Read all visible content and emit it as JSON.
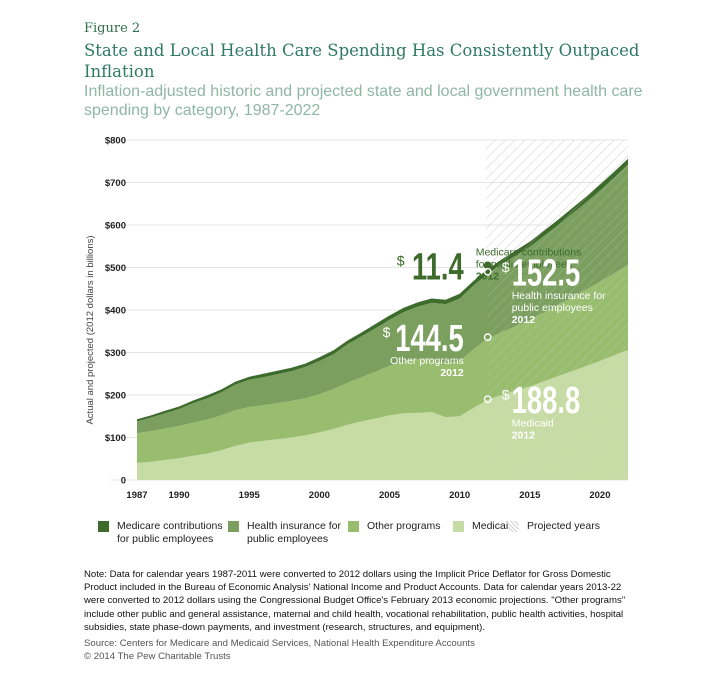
{
  "figure_label": "Figure 2",
  "title": "State and Local Health Care Spending Has Consistently Outpaced Inflation",
  "subtitle": "Inflation-adjusted historic and projected state and local government health care spending by category, 1987-2022",
  "colors": {
    "medicare": "#3d6b2c",
    "health_insurance": "#7a9f5e",
    "other_programs": "#98bd6e",
    "medicaid": "#c7dca4",
    "callout_dark": "#3d6b2c",
    "callout_light": "#ffffff",
    "hatch": "#cfcfcf"
  },
  "chart_data": {
    "type": "area",
    "stacked": true,
    "ylabel": "Actual and projected (2012 dollars in billions)",
    "ylim": [
      0,
      800
    ],
    "yticks": [
      {
        "value": 0,
        "label": "0"
      },
      {
        "value": 100,
        "label": "$100"
      },
      {
        "value": 200,
        "label": "$200"
      },
      {
        "value": 300,
        "label": "$300"
      },
      {
        "value": 400,
        "label": "$400"
      },
      {
        "value": 500,
        "label": "$500"
      },
      {
        "value": 600,
        "label": "$600"
      },
      {
        "value": 700,
        "label": "$700"
      },
      {
        "value": 800,
        "label": "$800"
      }
    ],
    "xticks": [
      {
        "value": 1987,
        "label": "1987"
      },
      {
        "value": 1990,
        "label": "1990"
      },
      {
        "value": 1995,
        "label": "1995"
      },
      {
        "value": 2000,
        "label": "2000"
      },
      {
        "value": 2005,
        "label": "2005"
      },
      {
        "value": 2010,
        "label": "2010"
      },
      {
        "value": 2015,
        "label": "2015"
      },
      {
        "value": 2020,
        "label": "2020"
      }
    ],
    "xlim": [
      1987,
      2022
    ],
    "projected_range": [
      2012,
      2022
    ],
    "x": [
      1987,
      1988,
      1989,
      1990,
      1991,
      1992,
      1993,
      1994,
      1995,
      1996,
      1997,
      1998,
      1999,
      2000,
      2001,
      2002,
      2003,
      2004,
      2005,
      2006,
      2007,
      2008,
      2009,
      2010,
      2011,
      2012,
      2013,
      2014,
      2015,
      2016,
      2017,
      2018,
      2019,
      2020,
      2021,
      2022
    ],
    "series": [
      {
        "name": "Medicaid",
        "key": "medicaid",
        "values": [
          40,
          43,
          47,
          51,
          57,
          62,
          70,
          80,
          88,
          92,
          96,
          100,
          105,
          112,
          120,
          130,
          138,
          145,
          152,
          157,
          158,
          160,
          148,
          150,
          170,
          189,
          200,
          210,
          220,
          232,
          244,
          256,
          268,
          280,
          293,
          306
        ]
      },
      {
        "name": "Other programs",
        "key": "other_programs",
        "values": [
          70,
          72,
          74,
          76,
          78,
          80,
          82,
          84,
          84,
          84,
          85,
          86,
          87,
          90,
          94,
          99,
          104,
          110,
          117,
          123,
          126,
          126,
          126,
          130,
          138,
          144,
          148,
          152,
          157,
          162,
          168,
          174,
          180,
          186,
          193,
          200
        ]
      },
      {
        "name": "Health insurance for public employees",
        "key": "health_insurance",
        "values": [
          28,
          32,
          36,
          40,
          46,
          50,
          54,
          60,
          64,
          66,
          68,
          70,
          74,
          78,
          82,
          90,
          96,
          102,
          108,
          115,
          124,
          131,
          140,
          147,
          150,
          152,
          160,
          166,
          172,
          180,
          187,
          196,
          205,
          215,
          225,
          236
        ]
      },
      {
        "name": "Medicare contributions for public employees",
        "key": "medicare",
        "values": [
          5,
          5,
          6,
          6,
          6,
          7,
          7,
          7,
          7,
          8,
          8,
          8,
          8,
          9,
          9,
          9,
          9,
          10,
          10,
          10,
          10,
          10,
          10,
          11,
          11,
          11,
          11,
          12,
          12,
          12,
          13,
          13,
          13,
          14,
          14,
          14
        ]
      }
    ],
    "legend": [
      {
        "label": "Medicare contributions for public employees",
        "key": "medicare"
      },
      {
        "label": "Health insurance for public employees",
        "key": "health_insurance"
      },
      {
        "label": "Other programs",
        "key": "other_programs"
      },
      {
        "label": "Medicaid",
        "key": "medicaid"
      },
      {
        "label": "Projected years",
        "key": "projected"
      }
    ],
    "annotations": [
      {
        "key": "medicare",
        "year": 2012,
        "y": 505,
        "value": "11.4",
        "label": "Medicare contributions for public employees",
        "year_label": "2012",
        "theme": "dark",
        "align": "left"
      },
      {
        "key": "health_insurance",
        "year": 2012,
        "y": 490,
        "value": "152.5",
        "label": "Health insurance for public employees",
        "year_label": "2012",
        "theme": "light",
        "align": "right"
      },
      {
        "key": "other_programs",
        "year": 2012,
        "y": 336,
        "value": "144.5",
        "label": "Other programs",
        "year_label": "2012",
        "theme": "light",
        "align": "left"
      },
      {
        "key": "medicaid",
        "year": 2012,
        "y": 190,
        "value": "188.8",
        "label": "Medicaid",
        "year_label": "2012",
        "theme": "light",
        "align": "right"
      }
    ],
    "currency_symbol": "$"
  },
  "note": "Note: Data for calendar years 1987-2011 were converted to 2012 dollars using the Implicit Price Deflator for Gross Domestic Product included in the Bureau of Economic Analysis' National Income and Product Accounts. Data for calendar years 2013-22 were converted to 2012 dollars using the Congressional Budget Office's February 2013 economic projections. \"Other programs\" include other public and general assistance, maternal and child health, vocational rehabilitation, public health activities, hospital subsidies, state phase-down payments, and investment (research, structures, and equipment).",
  "source": "Source: Centers for Medicare and Medicaid Services, National Health Expenditure Accounts",
  "copyright": "© 2014 The Pew Charitable Trusts"
}
